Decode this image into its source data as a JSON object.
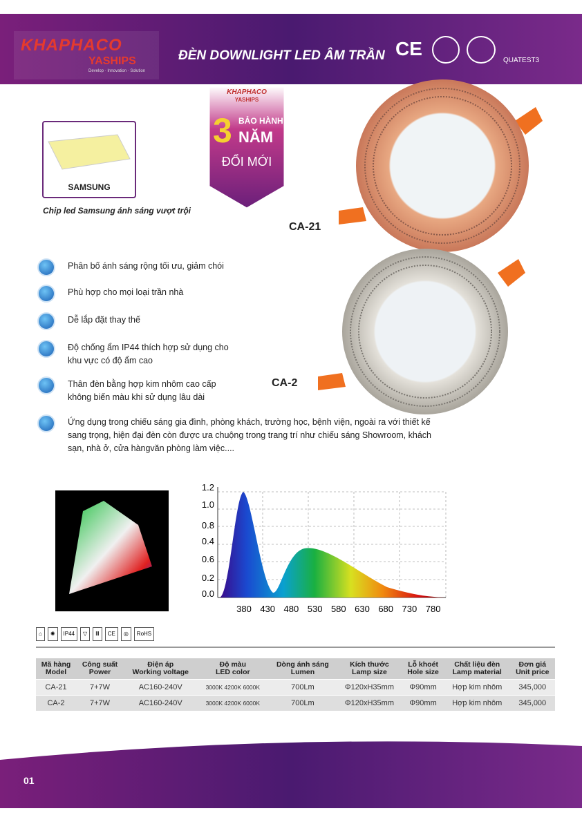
{
  "header": {
    "brand": "KHAPHACO",
    "sub_brand": "YASHIPS",
    "tagline": "Develop · Innovation · Solution",
    "title": "ĐÈN DOWNLIGHT LED ÂM TRẦN",
    "certs": [
      "CE",
      "QUATEST3"
    ]
  },
  "badge": {
    "brand": "KHAPHACO",
    "sub_brand": "YASHIPS",
    "line1": "BẢO HÀNH",
    "number": "3",
    "line2": "NĂM",
    "line3": "ĐỔI MỚI"
  },
  "chip": {
    "label": "SAMSUNG",
    "caption": "Chip led Samsung ánh sáng vượt trội"
  },
  "products": [
    "CA-21",
    "CA-2"
  ],
  "features": [
    "Phân bố ánh sáng rộng tối ưu, giảm chói",
    "Phù hợp cho mọi loại trần nhà",
    "Dễ lắp đặt thay thế",
    "Độ chống ẩm IP44 thích hợp sử dụng cho khu vực có độ ẩm cao",
    "Thân đèn bằng hợp kim nhôm cao cấp không biến màu khi sử dụng lâu dài",
    "Ứng dụng trong chiếu sáng gia đình, phòng khách, trường học, bệnh viện, ngoài ra với thiết kế sang trọng, hiện đại đèn còn được ưa chuộng trong trang trí  như chiếu sáng Showroom, khách sạn, nhà ở, cửa hàngvăn phòng làm việc...."
  ],
  "spectrum": {
    "y_labels": [
      "1.2",
      "1.0",
      "0.8",
      "0.4",
      "0.6",
      "0.2",
      "0.0"
    ],
    "x_labels": [
      "380",
      "430",
      "480",
      "530",
      "580",
      "630",
      "680",
      "730",
      "780"
    ]
  },
  "icons": [
    "IP44",
    "CE",
    "RoHS"
  ],
  "table": {
    "headers": [
      {
        "vi": "Mã hàng",
        "en": "Model"
      },
      {
        "vi": "Công suất",
        "en": "Power"
      },
      {
        "vi": "Điện áp",
        "en": "Working voltage"
      },
      {
        "vi": "Độ màu",
        "en": "LED color"
      },
      {
        "vi": "Dòng ánh sáng",
        "en": "Lumen"
      },
      {
        "vi": "Kích thước",
        "en": "Lamp size"
      },
      {
        "vi": "Lỗ khoét",
        "en": "Hole size"
      },
      {
        "vi": "Chất liệu đèn",
        "en": "Lamp material"
      },
      {
        "vi": "Đơn giá",
        "en": "Unit price"
      }
    ],
    "rows": [
      [
        "CA-21",
        "7+7W",
        "AC160-240V",
        "3000K 4200K 6000K",
        "700Lm",
        "Φ120xH35mm",
        "Φ90mm",
        "Hợp kim nhôm",
        "345,000"
      ],
      [
        "CA-2",
        "7+7W",
        "AC160-240V",
        "3000K 4200K 6000K",
        "700Lm",
        "Φ120xH35mm",
        "Φ90mm",
        "Hợp kim nhôm",
        "345,000"
      ]
    ]
  },
  "footer": {
    "page": "01"
  }
}
